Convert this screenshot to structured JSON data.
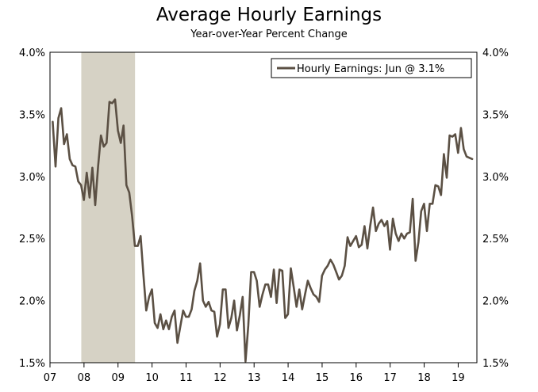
{
  "chart_data": {
    "type": "line",
    "title": "Average Hourly Earnings",
    "subtitle": "Year-over-Year Percent Change",
    "ylim": [
      1.5,
      4.0
    ],
    "y_ticks": [
      1.5,
      2.0,
      2.5,
      3.0,
      3.5,
      4.0
    ],
    "y_tick_labels": [
      "1.5%",
      "2.0%",
      "2.5%",
      "3.0%",
      "3.5%",
      "4.0%"
    ],
    "xlim": [
      2007.0,
      2019.55
    ],
    "x_ticks": [
      2007,
      2008,
      2009,
      2010,
      2011,
      2012,
      2013,
      2014,
      2015,
      2016,
      2017,
      2018,
      2019
    ],
    "x_tick_labels": [
      "07",
      "08",
      "09",
      "10",
      "11",
      "12",
      "13",
      "14",
      "15",
      "16",
      "17",
      "18",
      "19"
    ],
    "recession": {
      "start": 2007.92,
      "end": 2009.5
    },
    "legend": {
      "label": "Hourly Earnings: Jun @ 3.1%",
      "position": "top-right"
    },
    "colors": {
      "line": "#5b5044",
      "recession": "#d6d2c5",
      "axis": "#000000"
    },
    "series": [
      {
        "name": "Hourly Earnings",
        "x_start": 2007.08,
        "step": 0.0833333,
        "values": [
          3.44,
          3.08,
          3.47,
          3.55,
          3.26,
          3.34,
          3.14,
          3.09,
          3.08,
          2.96,
          2.93,
          2.81,
          3.03,
          2.83,
          3.07,
          2.77,
          3.08,
          3.33,
          3.24,
          3.27,
          3.6,
          3.59,
          3.62,
          3.37,
          3.27,
          3.41,
          2.93,
          2.87,
          2.68,
          2.44,
          2.44,
          2.52,
          2.21,
          1.92,
          2.03,
          2.09,
          1.82,
          1.78,
          1.89,
          1.77,
          1.84,
          1.77,
          1.87,
          1.92,
          1.66,
          1.79,
          1.92,
          1.87,
          1.87,
          1.93,
          2.08,
          2.16,
          2.3,
          2.0,
          1.95,
          1.99,
          1.92,
          1.91,
          1.71,
          1.81,
          2.09,
          2.09,
          1.78,
          1.86,
          2.0,
          1.76,
          1.88,
          2.03,
          1.51,
          1.8,
          2.23,
          2.23,
          2.16,
          1.95,
          2.05,
          2.13,
          2.13,
          2.03,
          2.25,
          1.98,
          2.25,
          2.24,
          1.86,
          1.89,
          2.26,
          2.11,
          1.95,
          2.09,
          1.93,
          2.05,
          2.16,
          2.1,
          2.05,
          2.03,
          1.99,
          2.2,
          2.25,
          2.28,
          2.33,
          2.29,
          2.23,
          2.17,
          2.2,
          2.28,
          2.51,
          2.44,
          2.48,
          2.52,
          2.43,
          2.45,
          2.6,
          2.42,
          2.6,
          2.75,
          2.56,
          2.62,
          2.65,
          2.6,
          2.64,
          2.41,
          2.66,
          2.54,
          2.48,
          2.54,
          2.5,
          2.54,
          2.55,
          2.82,
          2.32,
          2.47,
          2.72,
          2.78,
          2.56,
          2.78,
          2.78,
          2.93,
          2.92,
          2.85,
          3.18,
          2.99,
          3.33,
          3.32,
          3.34,
          3.19,
          3.39,
          3.22,
          3.16,
          3.15,
          3.14
        ]
      }
    ]
  }
}
